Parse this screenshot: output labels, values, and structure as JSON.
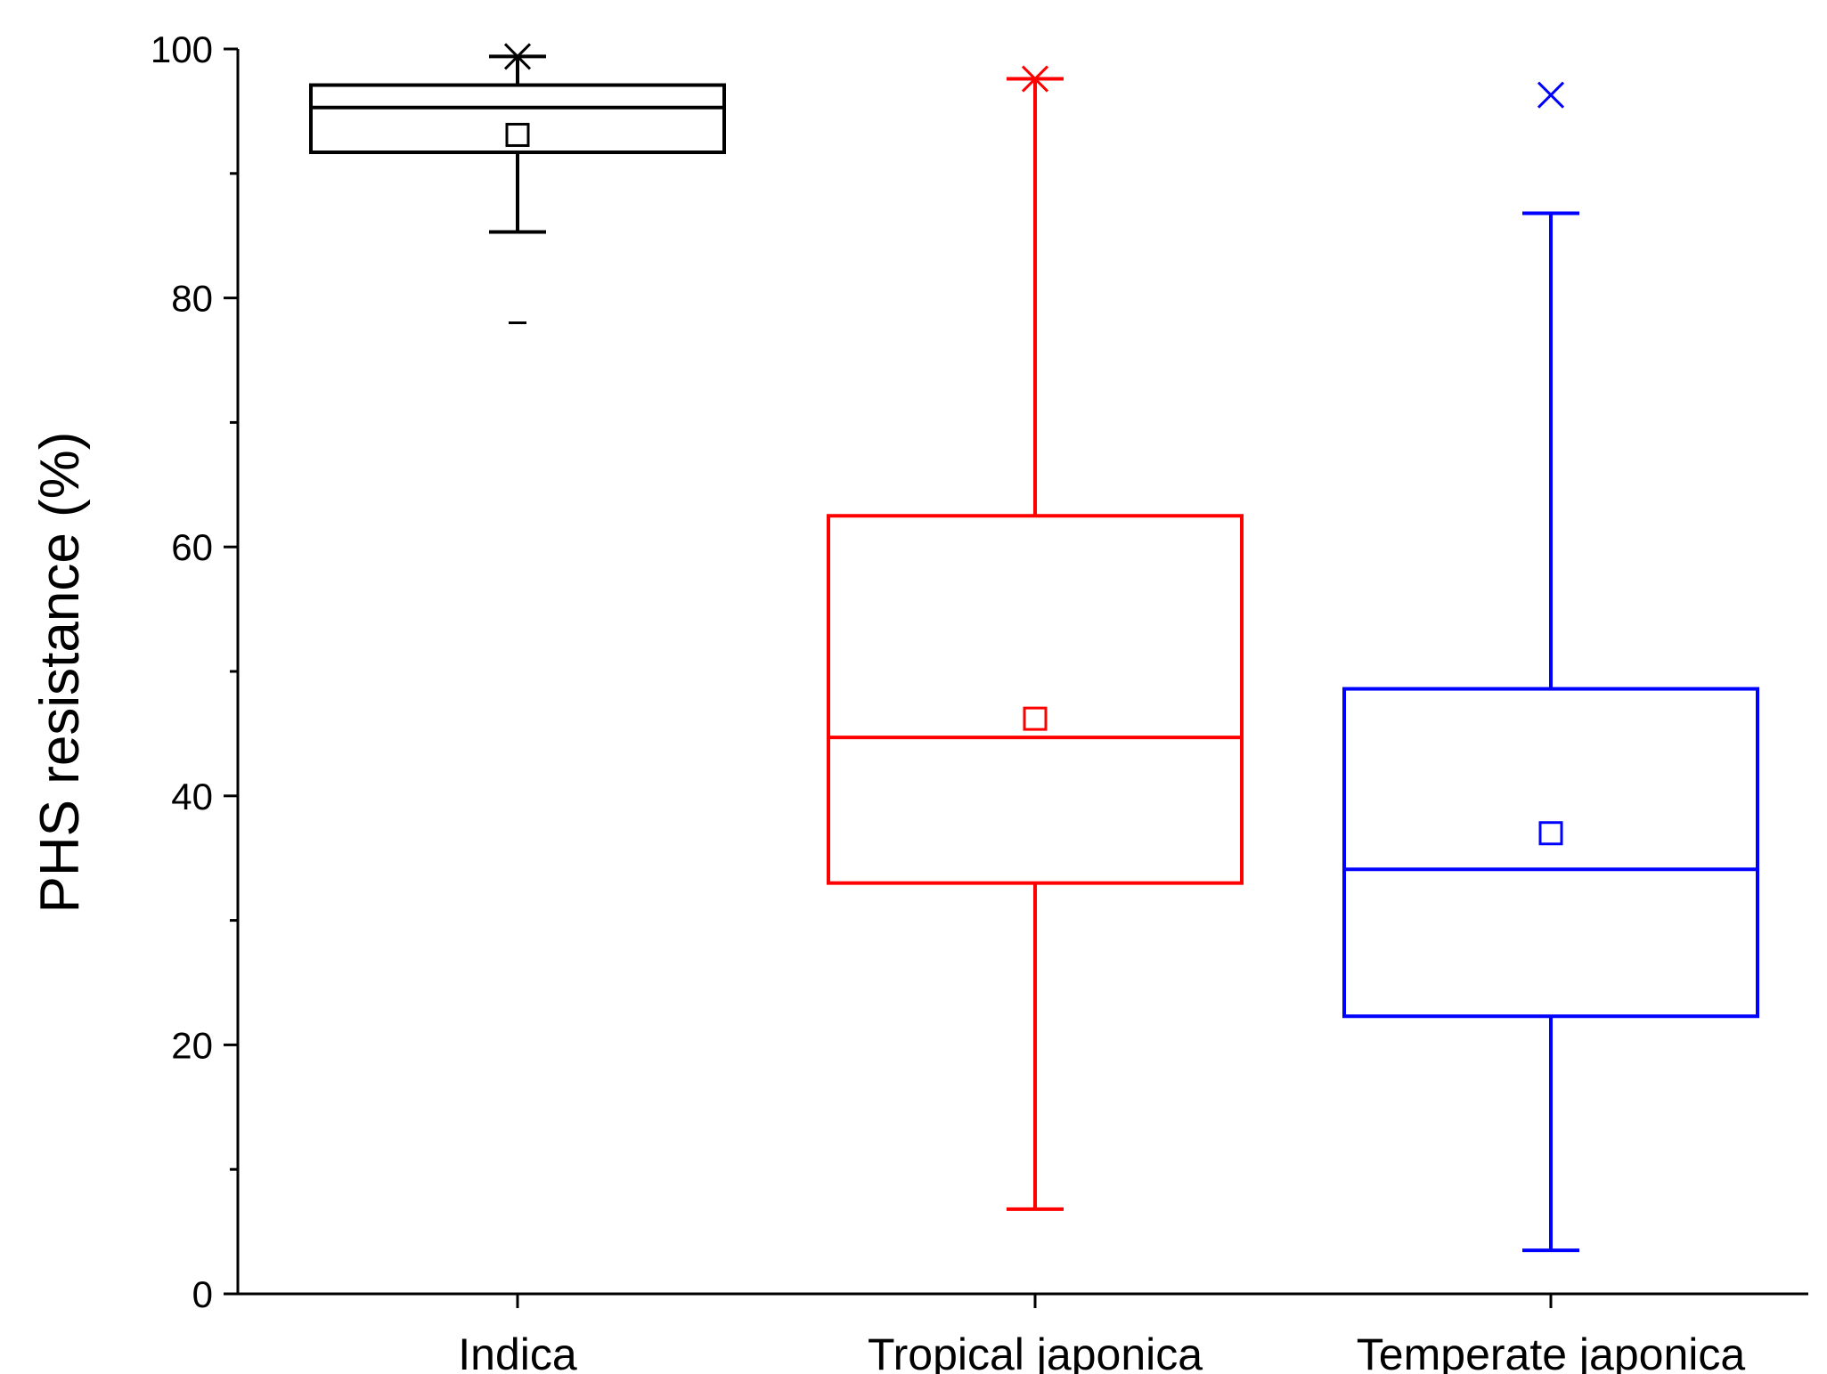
{
  "chart_data": {
    "type": "box",
    "title": "",
    "xlabel": "",
    "ylabel": "PHS resistance (%)",
    "ylim": [
      0,
      100
    ],
    "yticks_major": [
      0,
      20,
      40,
      60,
      80,
      100
    ],
    "yticks_minor": [
      10,
      30,
      50,
      70,
      90
    ],
    "tick_labels": [
      "0",
      "20",
      "40",
      "60",
      "80",
      "100"
    ],
    "categories": [
      "Indica",
      "Tropical japonica",
      "Temperate japonica"
    ],
    "legend": "none",
    "grid": false,
    "series": [
      {
        "category": "Indica",
        "color": "#000000",
        "whisker_low": 85.3,
        "q1": 91.7,
        "median": 95.3,
        "q3": 97.1,
        "whisker_high": 99.4,
        "mean": 93.1,
        "max": 99.4,
        "min": 78.0
      },
      {
        "category": "Tropical japonica",
        "color": "#ff0000",
        "whisker_low": 6.8,
        "q1": 33.0,
        "median": 44.7,
        "q3": 62.5,
        "whisker_high": 97.6,
        "mean": 46.2,
        "max": 97.6,
        "min": null
      },
      {
        "category": "Temperate japonica",
        "color": "#0000ff",
        "whisker_low": 3.5,
        "q1": 22.3,
        "median": 34.1,
        "q3": 48.6,
        "whisker_high": 86.8,
        "mean": 37.0,
        "max": 96.3,
        "min": null
      }
    ]
  }
}
